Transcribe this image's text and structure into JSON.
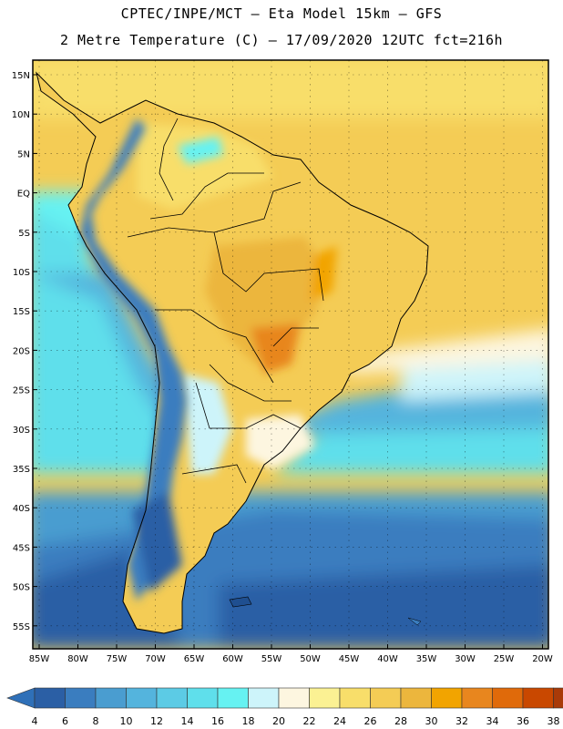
{
  "header": {
    "line1": "CPTEC/INPE/MCT –  Eta Model 15km – GFS",
    "line2": "2 Metre Temperature (C) – 17/09/2020 12UTC fct=216h"
  },
  "map": {
    "lat_labels": [
      "15N",
      "10N",
      "5N",
      "EQ",
      "5S",
      "10S",
      "15S",
      "20S",
      "25S",
      "30S",
      "35S",
      "40S",
      "45S",
      "50S",
      "55S"
    ],
    "lon_labels": [
      "85W",
      "80W",
      "75W",
      "70W",
      "65W",
      "60W",
      "55W",
      "50W",
      "45W",
      "40W",
      "35W",
      "30W",
      "25W",
      "20W"
    ]
  },
  "colorbar": {
    "labels": [
      "4",
      "6",
      "8",
      "10",
      "12",
      "14",
      "16",
      "18",
      "20",
      "22",
      "24",
      "26",
      "28",
      "30",
      "32",
      "34",
      "36",
      "38"
    ],
    "colors": [
      "#2b5fa5",
      "#3a7dbf",
      "#4a9dd0",
      "#54b4dd",
      "#5ccbe5",
      "#5fdfeb",
      "#66f2f2",
      "#cdf4fa",
      "#fdf6e0",
      "#fbf193",
      "#f8de6a",
      "#f4cc55",
      "#ecb63d",
      "#f2a400",
      "#e8861e",
      "#e06a0a",
      "#c94800",
      "#a93a08"
    ],
    "low_color": "#2f70b8",
    "high_color": "#b33f0c"
  }
}
